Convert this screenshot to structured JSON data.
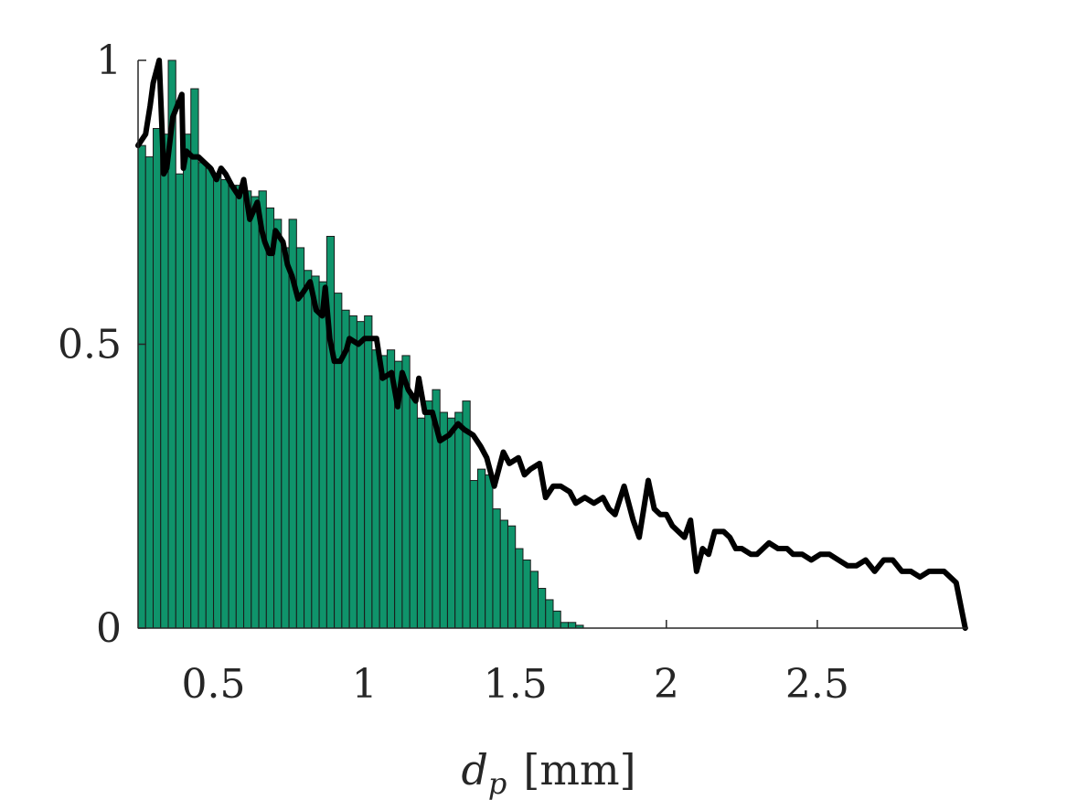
{
  "chart_data": {
    "type": "bar",
    "xlabel": {
      "main": "d",
      "sub": "p",
      "unit": "[mm]"
    },
    "ylabel": "",
    "xlim": [
      0.25,
      3.0
    ],
    "ylim": [
      0,
      1
    ],
    "xticks": [
      0.5,
      1,
      1.5,
      2,
      2.5
    ],
    "xtick_labels": [
      "0.5",
      "1",
      "1.5",
      "2",
      "2.5"
    ],
    "yticks": [
      0,
      0.5,
      1
    ],
    "ytick_labels": [
      "0",
      "0.5",
      "1"
    ],
    "grid": false,
    "colors": {
      "bars": "#0f946b",
      "line": "#000000",
      "axis": "#262626"
    },
    "histogram": {
      "bin_start": 0.25,
      "bin_width": 0.025,
      "values": [
        0.85,
        0.83,
        0.88,
        0.87,
        1.0,
        0.8,
        0.87,
        0.95,
        0.82,
        0.81,
        0.8,
        0.79,
        0.78,
        0.78,
        0.77,
        0.76,
        0.77,
        0.74,
        0.72,
        0.67,
        0.72,
        0.67,
        0.63,
        0.62,
        0.61,
        0.69,
        0.59,
        0.56,
        0.55,
        0.54,
        0.55,
        0.49,
        0.48,
        0.49,
        0.47,
        0.48,
        0.41,
        0.37,
        0.4,
        0.42,
        0.38,
        0.37,
        0.38,
        0.4,
        0.26,
        0.28,
        0.27,
        0.21,
        0.19,
        0.18,
        0.14,
        0.12,
        0.1,
        0.07,
        0.05,
        0.03,
        0.01,
        0.01,
        0.005
      ]
    },
    "line": {
      "x": [
        0.25,
        0.275,
        0.29,
        0.3,
        0.32,
        0.33,
        0.335,
        0.345,
        0.365,
        0.38,
        0.395,
        0.4,
        0.41,
        0.43,
        0.45,
        0.47,
        0.49,
        0.51,
        0.525,
        0.54,
        0.56,
        0.585,
        0.6,
        0.62,
        0.645,
        0.66,
        0.67,
        0.685,
        0.695,
        0.705,
        0.73,
        0.745,
        0.76,
        0.78,
        0.795,
        0.82,
        0.84,
        0.86,
        0.87,
        0.885,
        0.9,
        0.92,
        0.94,
        0.95,
        0.98,
        1.0,
        1.02,
        1.04,
        1.06,
        1.09,
        1.11,
        1.125,
        1.145,
        1.17,
        1.18,
        1.2,
        1.225,
        1.25,
        1.28,
        1.31,
        1.33,
        1.36,
        1.385,
        1.405,
        1.43,
        1.46,
        1.48,
        1.51,
        1.53,
        1.55,
        1.58,
        1.6,
        1.625,
        1.65,
        1.68,
        1.7,
        1.73,
        1.76,
        1.79,
        1.81,
        1.83,
        1.86,
        1.89,
        1.91,
        1.94,
        1.96,
        1.98,
        2.0,
        2.02,
        2.04,
        2.06,
        2.08,
        2.1,
        2.12,
        2.14,
        2.16,
        2.19,
        2.21,
        2.23,
        2.25,
        2.28,
        2.3,
        2.32,
        2.34,
        2.37,
        2.4,
        2.42,
        2.45,
        2.48,
        2.51,
        2.54,
        2.57,
        2.6,
        2.63,
        2.66,
        2.69,
        2.72,
        2.75,
        2.78,
        2.81,
        2.84,
        2.87,
        2.9,
        2.92,
        2.96,
        2.99
      ],
      "y": [
        0.85,
        0.87,
        0.92,
        0.96,
        1.0,
        0.87,
        0.8,
        0.81,
        0.9,
        0.92,
        0.94,
        0.81,
        0.84,
        0.83,
        0.83,
        0.82,
        0.81,
        0.79,
        0.81,
        0.8,
        0.78,
        0.76,
        0.79,
        0.72,
        0.75,
        0.7,
        0.68,
        0.66,
        0.66,
        0.7,
        0.68,
        0.64,
        0.62,
        0.58,
        0.59,
        0.61,
        0.56,
        0.55,
        0.6,
        0.51,
        0.47,
        0.47,
        0.49,
        0.51,
        0.5,
        0.51,
        0.51,
        0.51,
        0.44,
        0.45,
        0.39,
        0.45,
        0.42,
        0.4,
        0.44,
        0.38,
        0.38,
        0.33,
        0.34,
        0.36,
        0.35,
        0.34,
        0.32,
        0.3,
        0.25,
        0.31,
        0.29,
        0.3,
        0.27,
        0.28,
        0.29,
        0.23,
        0.25,
        0.25,
        0.24,
        0.22,
        0.23,
        0.22,
        0.23,
        0.21,
        0.2,
        0.25,
        0.19,
        0.16,
        0.26,
        0.21,
        0.2,
        0.2,
        0.18,
        0.17,
        0.16,
        0.19,
        0.1,
        0.14,
        0.13,
        0.17,
        0.17,
        0.16,
        0.14,
        0.14,
        0.13,
        0.13,
        0.14,
        0.15,
        0.14,
        0.14,
        0.13,
        0.13,
        0.12,
        0.13,
        0.13,
        0.12,
        0.11,
        0.11,
        0.12,
        0.1,
        0.12,
        0.12,
        0.1,
        0.1,
        0.09,
        0.1,
        0.1,
        0.1,
        0.08,
        0.0
      ]
    }
  }
}
